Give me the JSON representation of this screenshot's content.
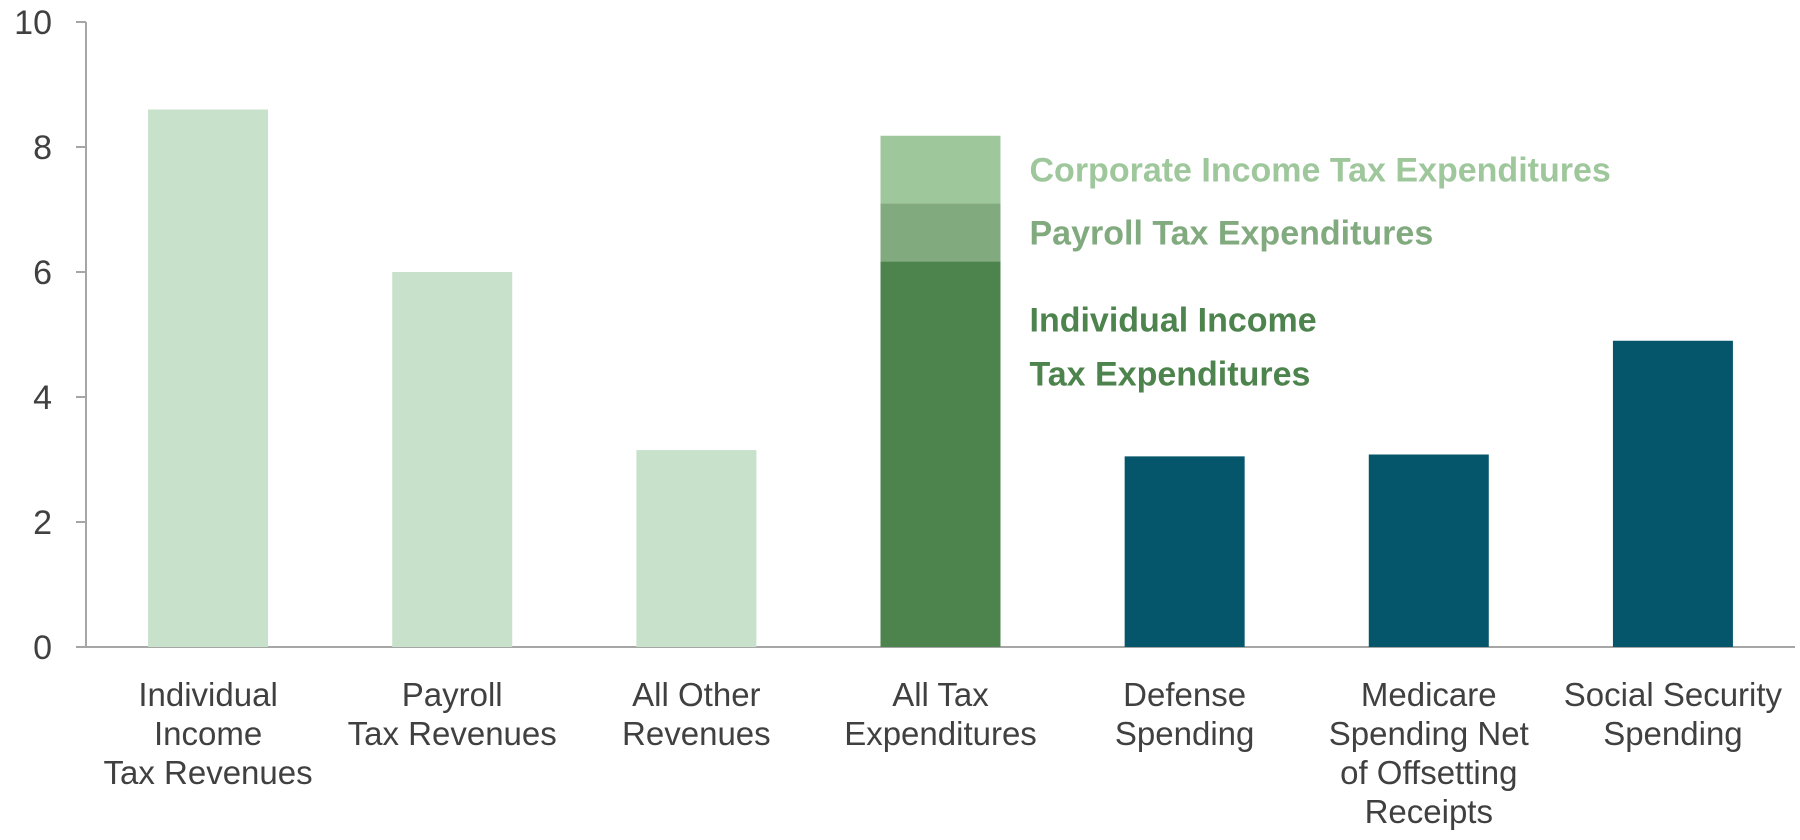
{
  "chart_data": {
    "type": "bar",
    "title": "",
    "xlabel": "",
    "ylabel": "",
    "ylim": [
      0,
      10
    ],
    "yticks": [
      0,
      2,
      4,
      6,
      8,
      10
    ],
    "grid": false,
    "categories": [
      [
        "Individual",
        "Income",
        "Tax Revenues"
      ],
      [
        "Payroll",
        "Tax Revenues"
      ],
      [
        "All Other",
        "Revenues"
      ],
      [
        "All Tax",
        "Expenditures"
      ],
      [
        "Defense",
        "Spending"
      ],
      [
        "Medicare",
        "Spending Net",
        "of Offsetting",
        "Receipts"
      ],
      [
        "Social Security",
        "Spending"
      ]
    ],
    "bars": [
      {
        "value": 8.6,
        "color": "#c8e1cb"
      },
      {
        "value": 6.0,
        "color": "#c8e1cb"
      },
      {
        "value": 3.15,
        "color": "#c8e1cb"
      },
      {
        "value": 8.18,
        "color": "#4d834c",
        "stacked": true
      },
      {
        "value": 3.05,
        "color": "#06566b"
      },
      {
        "value": 3.08,
        "color": "#06566b"
      },
      {
        "value": 4.9,
        "color": "#06566b"
      }
    ],
    "stack": {
      "category_index": 3,
      "segments": [
        {
          "name": [
            "Individual Income",
            "Tax Expenditures"
          ],
          "value": 6.17,
          "color": "#4d834c"
        },
        {
          "name": [
            "Payroll Tax Expenditures"
          ],
          "value": 0.93,
          "color": "#82aa7f"
        },
        {
          "name": [
            "Corporate Income Tax Expenditures"
          ],
          "value": 1.08,
          "color": "#9fc79c"
        }
      ]
    }
  }
}
